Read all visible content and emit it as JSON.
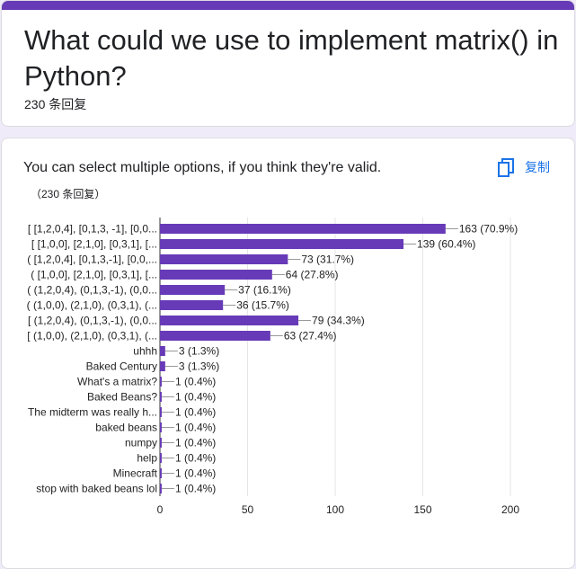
{
  "question": {
    "title": "What could we use to implement matrix() in Python?",
    "responses": "230 条回复"
  },
  "chart_panel": {
    "subtitle": "You can select multiple options, if you think they're valid.",
    "response_count": "（230 条回复）",
    "copy_label": "复制",
    "copy_icon": "copy-icon"
  },
  "colors": {
    "accent": "#673ab7",
    "bar": "#673ab7",
    "link": "#1a73e8"
  },
  "chart_data": {
    "type": "bar",
    "orientation": "horizontal",
    "categories": [
      "[ [1,2,0,4], [0,1,3, -1], [0,0...",
      "[ [1,0,0], [2,1,0], [0,3,1], [...",
      "( [1,2,0,4], [0,1,3,-1], [0,0,...",
      "( [1,0,0], [2,1,0], [0,3,1], [...",
      "( (1,2,0,4), (0,1,3,-1), (0,0...",
      "( (1,0,0), (2,1,0), (0,3,1), (...",
      "[ (1,2,0,4), (0,1,3,-1), (0,0...",
      "[ (1,0,0), (2,1,0), (0,3,1), (...",
      "uhhh",
      "Baked Century",
      "What's a matrix?",
      "Baked Beans?",
      "The midterm was really h...",
      "baked beans",
      "numpy",
      "help",
      "Minecraft",
      "stop with baked beans lol"
    ],
    "values": [
      163,
      139,
      73,
      64,
      37,
      36,
      79,
      63,
      3,
      3,
      1,
      1,
      1,
      1,
      1,
      1,
      1,
      1
    ],
    "data_labels": [
      "163 (70.9%)",
      "139 (60.4%)",
      "73 (31.7%)",
      "64 (27.8%)",
      "37 (16.1%)",
      "36 (15.7%)",
      "79 (34.3%)",
      "63 (27.4%)",
      "3 (1.3%)",
      "3 (1.3%)",
      "1 (0.4%)",
      "1 (0.4%)",
      "1 (0.4%)",
      "1 (0.4%)",
      "1 (0.4%)",
      "1 (0.4%)",
      "1 (0.4%)",
      "1 (0.4%)"
    ],
    "xlim": [
      0,
      200
    ],
    "xticks": [
      0,
      50,
      100,
      150,
      200
    ],
    "grid": true
  }
}
